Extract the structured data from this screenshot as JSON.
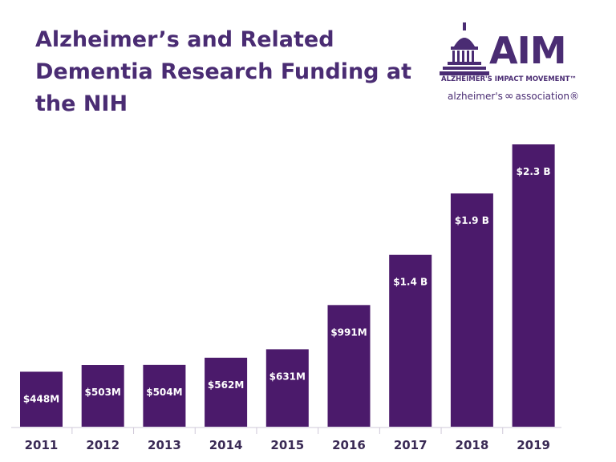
{
  "logo": {
    "wordmark": "AIM",
    "subtitle": "ALZHEIMER'S IMPACT MOVEMENT™",
    "association_left": "alzheimer's",
    "association_right": "association®",
    "icon": "capitol-dome-icon"
  },
  "colors": {
    "bar": "#4b1a6b",
    "title": "#4a2c73",
    "axis": "#cfc8d8"
  },
  "chart_data": {
    "type": "bar",
    "title": "Alzheimer’s and Related Dementia Research Funding at the NIH",
    "xlabel": "",
    "ylabel": "",
    "unit": "USD",
    "categories": [
      "2011",
      "2012",
      "2013",
      "2014",
      "2015",
      "2016",
      "2017",
      "2018",
      "2019"
    ],
    "values": [
      448,
      503,
      504,
      562,
      631,
      991,
      1400,
      1900,
      2300
    ],
    "value_units": "millions",
    "data_labels": [
      "$448M",
      "$503M",
      "$504M",
      "$562M",
      "$631M",
      "$991M",
      "$1.4 B",
      "$1.9 B",
      "$2.3 B"
    ],
    "ylim": [
      0,
      2300
    ],
    "grid": false,
    "legend": "none"
  }
}
